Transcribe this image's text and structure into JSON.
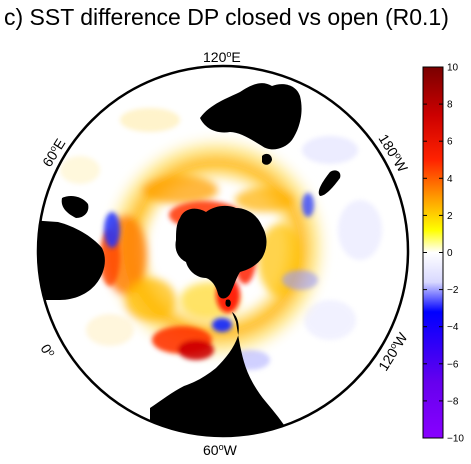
{
  "title": "c) SST difference DP closed vs open (R0.1)",
  "meridian_labels": [
    {
      "text": "120",
      "sup": "o",
      "hemi": "E"
    },
    {
      "text": "180",
      "sup": "o",
      "hemi": "W"
    },
    {
      "text": "120",
      "sup": "o",
      "hemi": "W"
    },
    {
      "text": "60",
      "sup": "o",
      "hemi": "W"
    },
    {
      "text": "0",
      "sup": "o",
      "hemi": ""
    },
    {
      "text": "60",
      "sup": "o",
      "hemi": "E"
    }
  ],
  "colorbar": {
    "min": -10,
    "max": 10,
    "ticks": [
      "10",
      "8",
      "6",
      "4",
      "2",
      "0",
      "−2",
      "−4",
      "−6",
      "−8",
      "−10"
    ],
    "colors": {
      "high": "#7a0000",
      "warm": "#ff2200",
      "orange": "#ff9900",
      "yellow": "#ffff00",
      "neutral": "#ffffff",
      "blue": "#0000ff",
      "low": "#8800ff"
    }
  },
  "colors": {
    "land": "#000000",
    "neutral_ocean": "#ffffff"
  },
  "colors_meaning": "warm = SST higher with Drake Passage closed"
}
